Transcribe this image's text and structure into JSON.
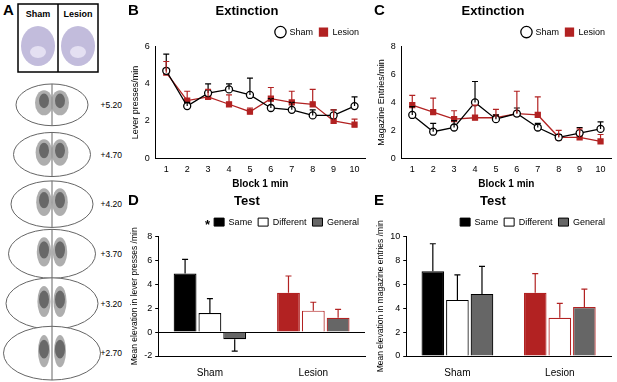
{
  "panel_a": {
    "label": "A",
    "image_labels": [
      "Sham",
      "Lesion"
    ],
    "levels": [
      "+5.20",
      "+4.70",
      "+4.20",
      "+3.70",
      "+3.20",
      "+2.70"
    ]
  },
  "chart_data": [
    {
      "type": "line",
      "panel": "B",
      "title": "Extinction",
      "x_label": "Block 1 min",
      "y_label": "Lever presses/min",
      "x": [
        1,
        2,
        3,
        4,
        5,
        6,
        7,
        8,
        9,
        10
      ],
      "xlim": [
        0.5,
        10.5
      ],
      "xticks": [
        1,
        2,
        3,
        4,
        5,
        6,
        7,
        8,
        9,
        10
      ],
      "ylim": [
        0,
        6
      ],
      "yticks": [
        0,
        2,
        4,
        6
      ],
      "grid": false,
      "legend": "upper right",
      "series": [
        {
          "name": "Sham",
          "color": "#000000",
          "marker": "open_circle",
          "values": [
            4.7,
            2.8,
            3.5,
            3.7,
            3.4,
            2.7,
            2.6,
            2.3,
            2.3,
            2.8
          ],
          "errors": [
            0.9,
            0.2,
            0.5,
            0.3,
            0.9,
            0.5,
            0.4,
            0.3,
            0.3,
            0.5
          ]
        },
        {
          "name": "Lesion",
          "color": "#b22222",
          "marker": "square",
          "values": [
            4.6,
            3.1,
            3.3,
            2.9,
            2.5,
            3.2,
            3.0,
            2.9,
            2.0,
            1.8
          ],
          "errors": [
            0.6,
            0.5,
            0.4,
            0.5,
            0.2,
            0.6,
            0.6,
            0.8,
            0.6,
            0.3
          ]
        }
      ]
    },
    {
      "type": "line",
      "panel": "C",
      "title": "Extinction",
      "x_label": "Block 1 min",
      "y_label": "Magazine Entries/min",
      "x": [
        1,
        2,
        3,
        4,
        5,
        6,
        7,
        8,
        9,
        10
      ],
      "xlim": [
        0.5,
        10.5
      ],
      "xticks": [
        1,
        2,
        3,
        4,
        5,
        6,
        7,
        8,
        9,
        10
      ],
      "ylim": [
        0,
        8
      ],
      "yticks": [
        0,
        2,
        4,
        6,
        8
      ],
      "grid": false,
      "legend": "upper right",
      "series": [
        {
          "name": "Sham",
          "color": "#000000",
          "marker": "open_circle",
          "values": [
            3.1,
            1.9,
            2.2,
            4.0,
            2.8,
            3.2,
            2.2,
            1.5,
            1.8,
            2.1
          ],
          "errors": [
            0.6,
            0.6,
            0.5,
            1.5,
            0.3,
            0.4,
            0.3,
            0.2,
            0.4,
            0.5
          ]
        },
        {
          "name": "Lesion",
          "color": "#b22222",
          "marker": "square",
          "values": [
            3.8,
            3.3,
            2.8,
            2.9,
            2.9,
            3.2,
            3.1,
            1.5,
            1.5,
            1.2
          ],
          "errors": [
            0.7,
            1.0,
            0.6,
            0.9,
            0.6,
            1.6,
            1.3,
            0.5,
            0.6,
            0.5
          ]
        }
      ]
    },
    {
      "type": "bar",
      "panel": "D",
      "title": "Test",
      "y_label": "Mean elevation in lever presses /min",
      "annotations": [
        "*"
      ],
      "categories": [
        "Sham",
        "Lesion"
      ],
      "ylim": [
        -2,
        8
      ],
      "yticks": [
        -2,
        0,
        2,
        4,
        6,
        8
      ],
      "grid": false,
      "legend": "upper right",
      "series": [
        {
          "name": "Same",
          "color": "#000000",
          "colors": [
            "#000000",
            "#b22222"
          ],
          "values": [
            4.9,
            3.3
          ],
          "errors": [
            1.2,
            1.4
          ]
        },
        {
          "name": "Different",
          "color": "#ffffff",
          "colors": [
            "#ffffff",
            "#ffffff"
          ],
          "values": [
            1.6,
            1.8
          ],
          "errors": [
            1.2,
            0.7
          ]
        },
        {
          "name": "General",
          "color": "#666666",
          "colors": [
            "#666666",
            "#666666"
          ],
          "values": [
            -0.6,
            1.2
          ],
          "errors": [
            1.0,
            0.7
          ]
        }
      ]
    },
    {
      "type": "bar",
      "panel": "E",
      "title": "Test",
      "y_label": "Mean elevation in magazine entries /min",
      "categories": [
        "Sham",
        "Lesion"
      ],
      "ylim": [
        0,
        10
      ],
      "yticks": [
        0,
        2,
        4,
        6,
        8,
        10
      ],
      "grid": false,
      "legend": "upper right",
      "series": [
        {
          "name": "Same",
          "color": "#000000",
          "colors": [
            "#000000",
            "#b22222"
          ],
          "values": [
            7.1,
            5.3
          ],
          "errors": [
            2.3,
            1.6
          ]
        },
        {
          "name": "Different",
          "color": "#ffffff",
          "colors": [
            "#ffffff",
            "#ffffff"
          ],
          "values": [
            4.7,
            3.2
          ],
          "errors": [
            2.1,
            1.2
          ]
        },
        {
          "name": "General",
          "color": "#666666",
          "colors": [
            "#666666",
            "#666666"
          ],
          "values": [
            5.2,
            4.1
          ],
          "errors": [
            2.3,
            1.5
          ]
        }
      ]
    }
  ]
}
